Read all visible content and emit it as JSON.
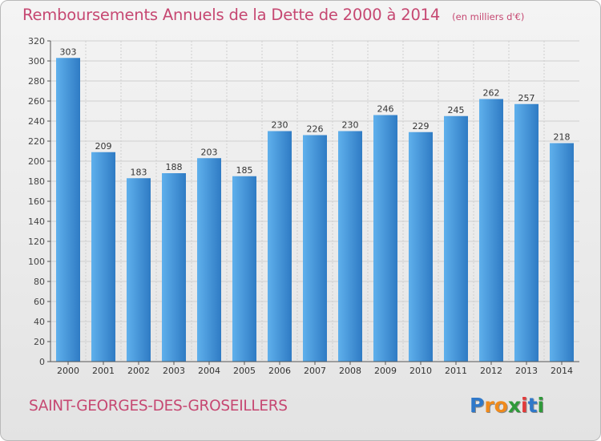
{
  "title": "Remboursements Annuels de la Dette de 2000 à 2014",
  "unit": "(en milliers d'€)",
  "commune": "SAINT-GEORGES-DES-GROSEILLERS",
  "brand": {
    "letters": [
      "P",
      "r",
      "o",
      "x",
      "i",
      "t",
      "i"
    ],
    "colors": [
      "#2f78c9",
      "#f08a1b",
      "#f08a1b",
      "#2f9a3a",
      "#e23a3a",
      "#2f78c9",
      "#2f9a3a"
    ]
  },
  "colors": {
    "bar": "#3f93d9",
    "bar_light": "#5fb0ec",
    "bar_dark": "#2f7bc4",
    "grid": "#cfcfcf"
  },
  "chart_data": {
    "type": "bar",
    "title": "Remboursements Annuels de la Dette de 2000 à 2014",
    "categories": [
      "2000",
      "2001",
      "2002",
      "2003",
      "2004",
      "2005",
      "2006",
      "2007",
      "2008",
      "2009",
      "2010",
      "2011",
      "2012",
      "2013",
      "2014"
    ],
    "values": [
      303,
      209,
      183,
      188,
      203,
      185,
      230,
      226,
      230,
      246,
      229,
      245,
      262,
      257,
      218
    ],
    "ylim": [
      0,
      320
    ],
    "yticks": [
      0,
      20,
      40,
      60,
      80,
      100,
      120,
      140,
      160,
      180,
      200,
      220,
      240,
      260,
      280,
      300,
      320
    ],
    "grid": true
  }
}
